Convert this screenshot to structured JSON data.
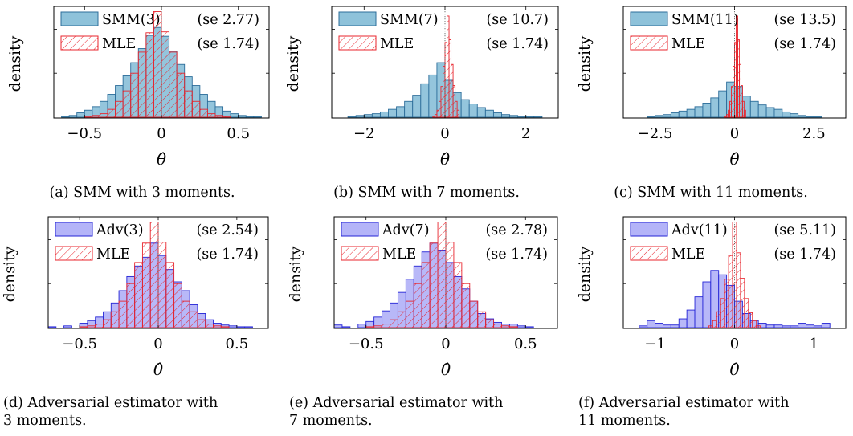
{
  "chart_data": [
    {
      "type": "histogram",
      "panel": "a",
      "caption": "(a) SMM with 3 moments.",
      "ylabel": "density",
      "xlabel": "θ̂",
      "xlim": [
        -0.7,
        0.7
      ],
      "xticks": [
        "−0.5",
        "0",
        "0.5"
      ],
      "xtick_values": [
        -0.5,
        0,
        0.5
      ],
      "ymax": 1.25,
      "yticks_count": 2,
      "ref_line": 0,
      "series": [
        {
          "name": "SMM(3)",
          "se": "(se 2.77)",
          "style": "filled-blue",
          "bin_start": -0.65,
          "bin_width": 0.05,
          "values": [
            0.01,
            0.02,
            0.05,
            0.08,
            0.12,
            0.18,
            0.26,
            0.36,
            0.47,
            0.62,
            0.78,
            0.93,
            1.02,
            0.92,
            0.75,
            0.6,
            0.46,
            0.36,
            0.26,
            0.18,
            0.12,
            0.07,
            0.04,
            0.02,
            0.01,
            0.01
          ]
        },
        {
          "name": "MLE",
          "se": "(se 1.74)",
          "style": "hatched-red",
          "bin_start": -0.65,
          "bin_width": 0.05,
          "values": [
            0,
            0,
            0,
            0.01,
            0.02,
            0.04,
            0.09,
            0.18,
            0.3,
            0.5,
            0.74,
            0.96,
            1.2,
            0.97,
            0.74,
            0.5,
            0.3,
            0.18,
            0.09,
            0.04,
            0.02,
            0.01,
            0,
            0,
            0,
            0
          ]
        }
      ]
    },
    {
      "type": "histogram",
      "panel": "b",
      "caption": "(b) SMM with 7 moments.",
      "ylabel": "density",
      "xlabel": "θ̂",
      "xlim": [
        -2.8,
        2.8
      ],
      "xticks": [
        "−2",
        "0",
        "2"
      ],
      "xtick_values": [
        -2,
        0,
        2
      ],
      "ymax": 1.25,
      "yticks_count": 2,
      "ref_line": 0,
      "series": [
        {
          "name": "SMM(7)",
          "se": "(se 10.7)",
          "style": "filled-blue",
          "bin_start": -2.4,
          "bin_width": 0.2,
          "values": [
            0.01,
            0.02,
            0.03,
            0.04,
            0.06,
            0.09,
            0.12,
            0.18,
            0.25,
            0.38,
            0.48,
            0.62,
            0.42,
            0.28,
            0.2,
            0.15,
            0.11,
            0.08,
            0.05,
            0.03,
            0.02,
            0.01,
            0.01,
            0.01
          ]
        },
        {
          "name": "MLE",
          "se": "(se 1.74)",
          "style": "hatched-red",
          "bin_start": -0.3,
          "bin_width": 0.05,
          "values": [
            0.01,
            0.03,
            0.08,
            0.18,
            0.35,
            0.58,
            0.85,
            1.15,
            0.88,
            0.6,
            0.36,
            0.18,
            0.08
          ]
        }
      ]
    },
    {
      "type": "histogram",
      "panel": "c",
      "caption": "(c) SMM with 11 moments.",
      "ylabel": "density",
      "xlabel": "θ̂",
      "xlim": [
        -3.5,
        3.5
      ],
      "xticks": [
        "−2.5",
        "0",
        "2.5"
      ],
      "xtick_values": [
        -2.5,
        0,
        2.5
      ],
      "ymax": 1.25,
      "yticks_count": 2,
      "ref_line": 0,
      "series": [
        {
          "name": "SMM(11)",
          "se": "(se 13.5)",
          "style": "filled-blue",
          "bin_start": -2.75,
          "bin_width": 0.25,
          "values": [
            0.01,
            0.02,
            0.03,
            0.05,
            0.07,
            0.09,
            0.12,
            0.16,
            0.22,
            0.3,
            0.4,
            0.35,
            0.24,
            0.18,
            0.14,
            0.11,
            0.09,
            0.06,
            0.04,
            0.02,
            0.01,
            0.01
          ]
        },
        {
          "name": "MLE",
          "se": "(se 1.74)",
          "style": "hatched-red",
          "bin_start": -0.3,
          "bin_width": 0.05,
          "values": [
            0.01,
            0.03,
            0.08,
            0.18,
            0.35,
            0.58,
            0.85,
            1.15,
            0.88,
            0.6,
            0.36,
            0.18,
            0.08
          ]
        }
      ]
    },
    {
      "type": "histogram",
      "panel": "d",
      "caption": "(d) Adversarial estimator with\n3 moments.",
      "ylabel": "density",
      "xlabel": "θ̂",
      "xlim": [
        -0.7,
        0.7
      ],
      "xticks": [
        "−0.5",
        "0",
        "0.5"
      ],
      "xtick_values": [
        -0.5,
        0,
        0.5
      ],
      "ymax": 1.25,
      "yticks_count": 2,
      "ref_line": 0,
      "series": [
        {
          "name": "Adv(3)",
          "se": "(se 2.54)",
          "style": "filled-purple",
          "bin_start": -0.7,
          "bin_width": 0.05,
          "values": [
            0.01,
            0,
            0.02,
            0,
            0.05,
            0.08,
            0.12,
            0.18,
            0.28,
            0.42,
            0.58,
            0.7,
            0.8,
            0.96,
            0.82,
            0.66,
            0.52,
            0.42,
            0.26,
            0.16,
            0.09,
            0.05,
            0.03,
            0.02,
            0.01,
            0.01
          ]
        },
        {
          "name": "MLE",
          "se": "(se 1.74)",
          "style": "hatched-red",
          "bin_start": -0.65,
          "bin_width": 0.05,
          "values": [
            0,
            0,
            0,
            0.01,
            0.02,
            0.04,
            0.09,
            0.18,
            0.3,
            0.5,
            0.74,
            0.96,
            1.2,
            0.97,
            0.74,
            0.5,
            0.3,
            0.18,
            0.09,
            0.04,
            0.02,
            0.01,
            0,
            0,
            0,
            0
          ]
        }
      ]
    },
    {
      "type": "histogram",
      "panel": "e",
      "caption": "(e) Adversarial estimator with\n7 moments.",
      "ylabel": "density",
      "xlabel": "θ̂",
      "xlim": [
        -0.7,
        0.7
      ],
      "xticks": [
        "−0.5",
        "0",
        "0.5"
      ],
      "xtick_values": [
        -0.5,
        0,
        0.5
      ],
      "ymax": 1.25,
      "yticks_count": 2,
      "ref_line": 0,
      "series": [
        {
          "name": "Adv(7)",
          "se": "(se 2.78)",
          "style": "filled-purple",
          "bin_start": -0.7,
          "bin_width": 0.05,
          "values": [
            0.03,
            0.01,
            0,
            0.04,
            0.07,
            0.12,
            0.19,
            0.28,
            0.4,
            0.55,
            0.7,
            0.86,
            0.96,
            0.88,
            0.74,
            0.58,
            0.44,
            0.3,
            0.16,
            0.1,
            0.06,
            0.04,
            0.04,
            0.02,
            0.01,
            0
          ]
        },
        {
          "name": "MLE",
          "se": "(se 1.74)",
          "style": "hatched-red",
          "bin_start": -0.65,
          "bin_width": 0.05,
          "values": [
            0,
            0,
            0,
            0.01,
            0.02,
            0.04,
            0.09,
            0.18,
            0.3,
            0.5,
            0.74,
            0.96,
            1.2,
            0.97,
            0.74,
            0.5,
            0.3,
            0.18,
            0.09,
            0.04,
            0.02,
            0.01,
            0,
            0,
            0,
            0
          ]
        }
      ]
    },
    {
      "type": "histogram",
      "panel": "f",
      "caption": "(f) Adversarial estimator with\n11 moments.",
      "ylabel": "density",
      "xlabel": "θ̂",
      "xlim": [
        -1.4,
        1.4
      ],
      "xticks": [
        "−1",
        "0",
        "1"
      ],
      "xtick_values": [
        -1,
        0,
        1
      ],
      "ymax": 1.25,
      "yticks_count": 2,
      "ref_line": 0,
      "series": [
        {
          "name": "Adv(11)",
          "se": "(se 5.11)",
          "style": "filled-purple",
          "bin_start": -1.2,
          "bin_width": 0.1,
          "values": [
            0.02,
            0.08,
            0.05,
            0.03,
            0.03,
            0.1,
            0.2,
            0.35,
            0.52,
            0.65,
            0.6,
            0.48,
            0.3,
            0.16,
            0.08,
            0.05,
            0.03,
            0.03,
            0.02,
            0.02,
            0.05,
            0.03,
            0.02,
            0.05
          ]
        },
        {
          "name": "MLE",
          "se": "(se 1.74)",
          "style": "hatched-red",
          "bin_start": -0.325,
          "bin_width": 0.05,
          "values": [
            0.02,
            0.08,
            0.18,
            0.33,
            0.55,
            0.82,
            1.2,
            0.85,
            0.56,
            0.33,
            0.17,
            0.08,
            0.02
          ]
        }
      ]
    }
  ],
  "colors": {
    "smm_fill": "#8ec2da",
    "smm_stroke": "#2c6d9a",
    "adv_fill": "#b4b4f8",
    "adv_stroke": "#2424d6",
    "mle_stroke": "#e8262e",
    "axis": "#000000",
    "ref_line": "#555555"
  }
}
